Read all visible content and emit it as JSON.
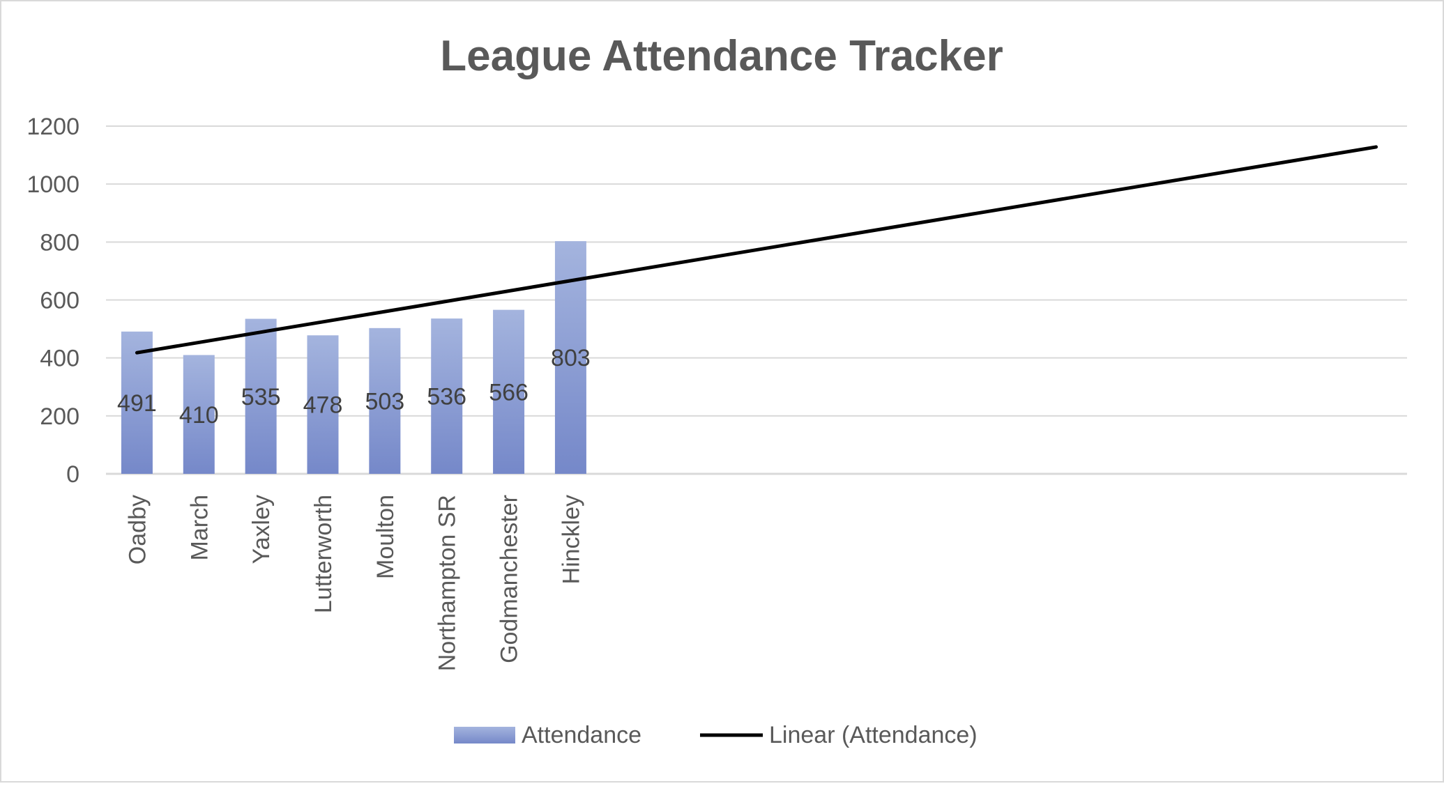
{
  "chart_data": {
    "type": "bar",
    "title": "League Attendance Tracker",
    "categories": [
      "Oadby",
      "March",
      "Yaxley",
      "Lutterworth",
      "Moulton",
      "Northampton SR",
      "Godmanchester",
      "Hinckley"
    ],
    "values": [
      491,
      410,
      535,
      478,
      503,
      536,
      566,
      803
    ],
    "x_slots": 21,
    "ylim": [
      0,
      1200
    ],
    "yticks": [
      0,
      200,
      400,
      600,
      800,
      1000,
      1200
    ],
    "grid": true,
    "legend_position": "bottom",
    "series": [
      {
        "name": "Attendance",
        "kind": "bar",
        "values": [
          491,
          410,
          535,
          478,
          503,
          536,
          566,
          803
        ]
      },
      {
        "name": "Linear (Attendance)",
        "kind": "trendline",
        "start": [
          1,
          418
        ],
        "end": [
          21,
          1128
        ]
      }
    ],
    "colors": {
      "bar_top": "#a4b4de",
      "bar_bottom": "#7588c9",
      "trendline": "#000000",
      "grid": "#d9d9d9",
      "axis_text": "#595959",
      "title": "#595959",
      "label": "#404040"
    }
  }
}
